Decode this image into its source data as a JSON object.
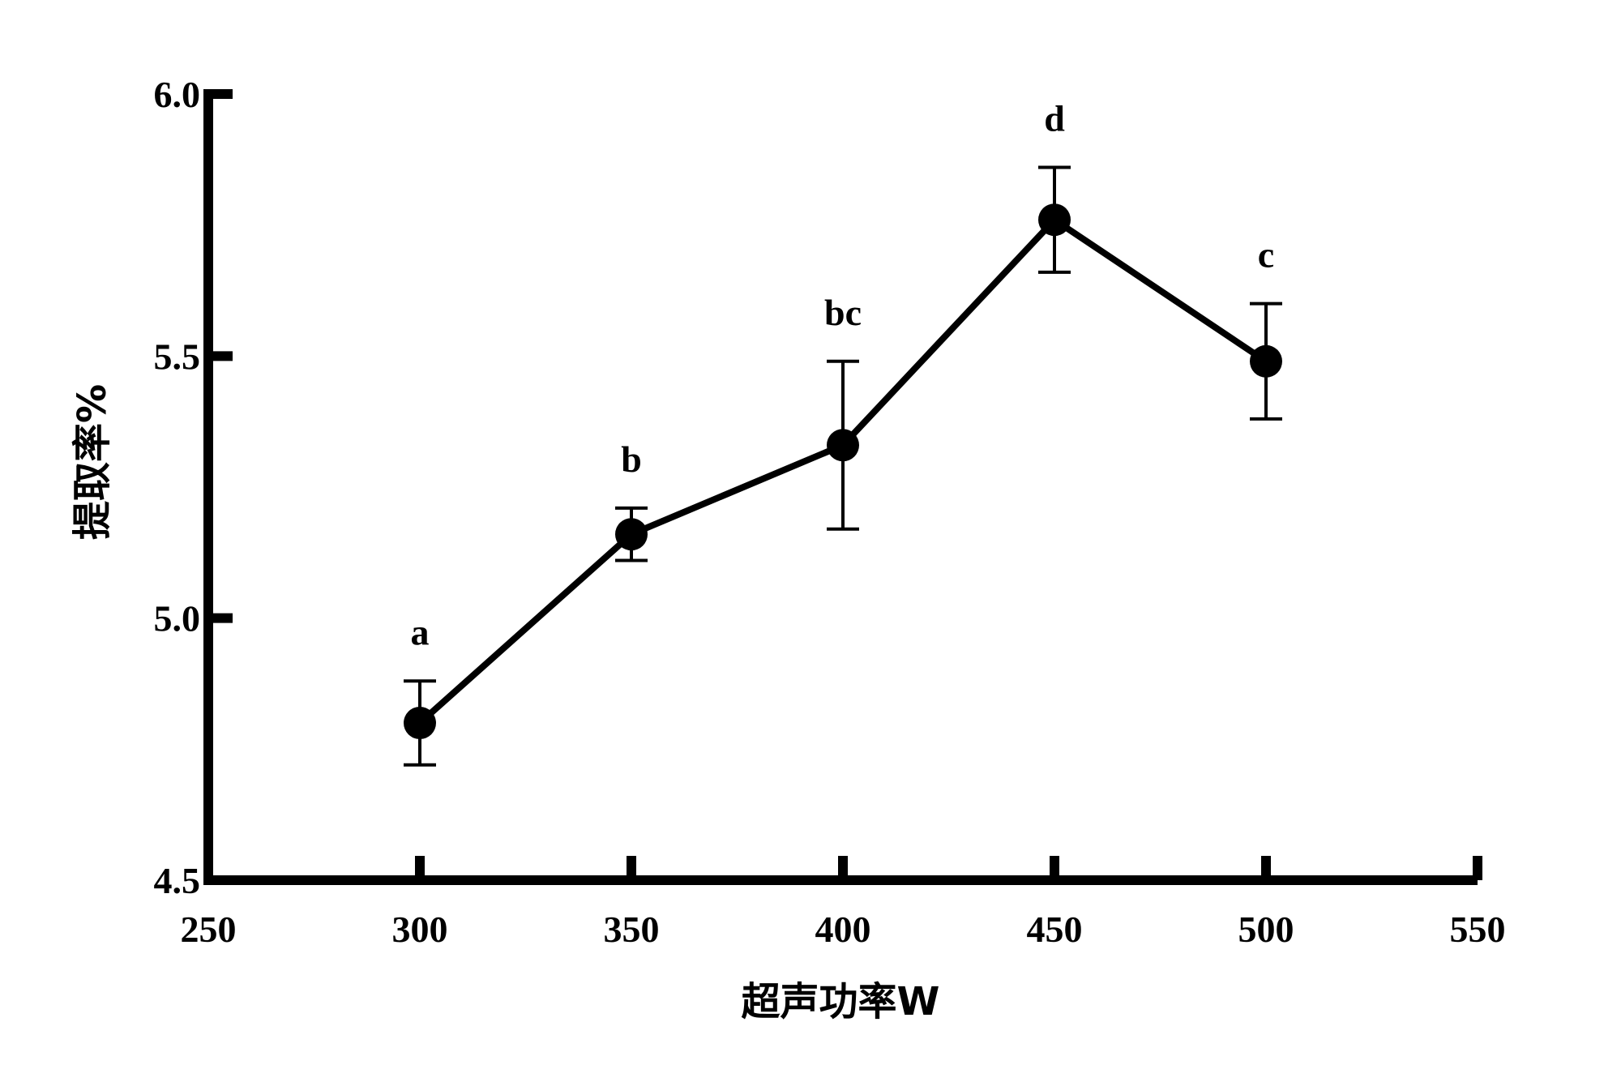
{
  "chart_data": {
    "type": "line",
    "xlabel": "超声功率W",
    "ylabel": "提取率%",
    "xlim": [
      250,
      550
    ],
    "ylim": [
      4.5,
      6.0
    ],
    "xticks": [
      250,
      300,
      350,
      400,
      450,
      500,
      550
    ],
    "xtick_labels": [
      "250",
      "300",
      "350",
      "400",
      "450",
      "500",
      "550"
    ],
    "yticks": [
      4.5,
      5.0,
      5.5,
      6.0
    ],
    "ytick_labels": [
      "4.5",
      "5.0",
      "5.5",
      "6.0"
    ],
    "grid": false,
    "legend": "none",
    "series": [
      {
        "x": [
          300,
          350,
          400,
          450,
          500
        ],
        "y": [
          4.8,
          5.16,
          5.33,
          5.76,
          5.49
        ],
        "error": [
          0.08,
          0.05,
          0.16,
          0.1,
          0.11
        ],
        "labels": [
          "a",
          "b",
          "bc",
          "d",
          "c"
        ],
        "color": "#000000",
        "marker": "circle"
      }
    ]
  }
}
